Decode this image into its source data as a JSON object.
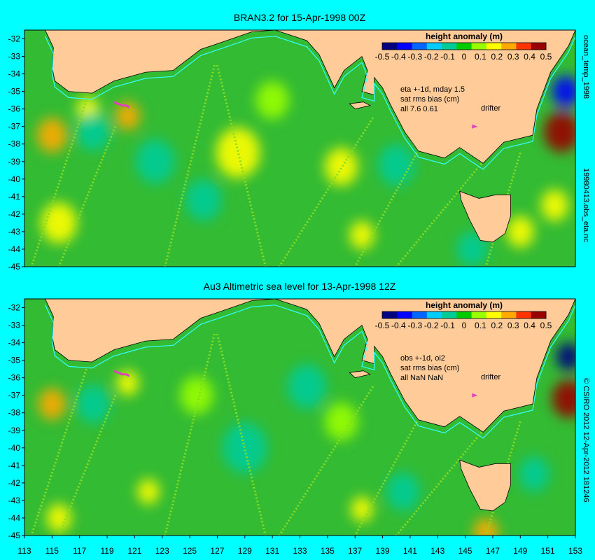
{
  "background_color": "#00ffff",
  "land_color": "#ffcc99",
  "ocean_base_color": "#33bb33",
  "coast_line_color": "#33ffff",
  "drifter_color": "#e040c0",
  "x_ticks": [
    "113",
    "115",
    "117",
    "119",
    "121",
    "123",
    "125",
    "127",
    "129",
    "131",
    "133",
    "135",
    "137",
    "139",
    "141",
    "143",
    "145",
    "147",
    "149",
    "151",
    "153"
  ],
  "y_ticks": [
    "-32",
    "-33",
    "-34",
    "-35",
    "-36",
    "-37",
    "-38",
    "-39",
    "-40",
    "-41",
    "-42",
    "-43",
    "-44",
    "-45"
  ],
  "colorbar": {
    "title": "height anomaly (m)",
    "labels": [
      "-0.5",
      "-0.4",
      "-0.3",
      "-0.2",
      "-0.1",
      "0",
      "0.1",
      "0.2",
      "0.3",
      "0.4",
      "0.5"
    ],
    "colors": [
      "#000080",
      "#0000ff",
      "#0066ff",
      "#00ccff",
      "#00cc99",
      "#00cc00",
      "#99ff00",
      "#ffff00",
      "#ffaa00",
      "#ff3300",
      "#990000"
    ]
  },
  "panels": [
    {
      "title": "BRAN3.2 for 15-Apr-1998 00Z",
      "info": [
        "eta +-1d, mday 1.5",
        "sat rms bias (cm)",
        "all 7.6 0.61"
      ],
      "drifter_label": "drifter",
      "side_label_top": "ocean_temp_1998",
      "side_label_bottom": "19980413.obs_eta.nc"
    },
    {
      "title": "Au3 Altimetric sea level  for 13-Apr-1998 12Z",
      "info": [
        "obs +-1d, oi2",
        "sat rms bias (cm)",
        "all NaN NaN"
      ],
      "drifter_label": "drifter",
      "side_label": "© CSIRO 2012  12-Apr-2012 181246"
    }
  ],
  "map_data": {
    "lon_range": [
      113,
      153
    ],
    "lat_range": [
      -45,
      -31.5
    ],
    "coast_mainland": [
      [
        114.5,
        -31.5
      ],
      [
        115.1,
        -32.5
      ],
      [
        115.0,
        -33.6
      ],
      [
        115.2,
        -34.4
      ],
      [
        116.2,
        -35.0
      ],
      [
        117.9,
        -35.1
      ],
      [
        119.5,
        -34.4
      ],
      [
        121.8,
        -33.9
      ],
      [
        123.8,
        -33.8
      ],
      [
        125.8,
        -32.6
      ],
      [
        127.3,
        -32.2
      ],
      [
        129.5,
        -31.6
      ],
      [
        131.2,
        -31.5
      ],
      [
        133.5,
        -32.1
      ],
      [
        134.4,
        -32.9
      ],
      [
        135.5,
        -34.8
      ],
      [
        136.2,
        -33.8
      ],
      [
        137.5,
        -33.0
      ],
      [
        137.9,
        -33.8
      ],
      [
        137.5,
        -35.0
      ],
      [
        138.4,
        -35.2
      ],
      [
        138.4,
        -34.2
      ],
      [
        139.0,
        -34.8
      ],
      [
        139.6,
        -35.8
      ],
      [
        140.6,
        -37.3
      ],
      [
        141.6,
        -38.4
      ],
      [
        143.5,
        -38.8
      ],
      [
        144.6,
        -38.2
      ],
      [
        146.3,
        -39.1
      ],
      [
        147.8,
        -37.9
      ],
      [
        149.9,
        -37.5
      ],
      [
        150.2,
        -36.0
      ],
      [
        151.2,
        -33.9
      ],
      [
        152.5,
        -32.4
      ],
      [
        153.0,
        -31.5
      ]
    ],
    "coast_tasmania": [
      [
        144.6,
        -40.7
      ],
      [
        146.0,
        -41.1
      ],
      [
        147.2,
        -40.9
      ],
      [
        148.3,
        -40.9
      ],
      [
        148.3,
        -42.1
      ],
      [
        147.9,
        -43.1
      ],
      [
        147.0,
        -43.6
      ],
      [
        146.1,
        -43.5
      ],
      [
        145.3,
        -42.3
      ],
      [
        144.7,
        -41.2
      ]
    ],
    "coast_kangaroo_island": [
      [
        136.6,
        -35.7
      ],
      [
        137.6,
        -35.6
      ],
      [
        138.1,
        -35.8
      ],
      [
        137.0,
        -36.0
      ]
    ],
    "drifter_tracks": [
      [
        [
          119.5,
          -35.6
        ],
        [
          119.8,
          -35.7
        ],
        [
          120.1,
          -35.8
        ],
        [
          120.4,
          -35.8
        ],
        [
          120.6,
          -35.9
        ]
      ]
    ],
    "drifter_legend_marker": [
      145.7,
      -37.0
    ],
    "anomaly_features_panel1": [
      {
        "lon": 115.0,
        "lat": -37.5,
        "value": 0.3,
        "radius": 1.1
      },
      {
        "lon": 120.5,
        "lat": -36.4,
        "value": 0.3,
        "radius": 0.9
      },
      {
        "lon": 117.6,
        "lat": -36.0,
        "value": 0.2,
        "radius": 0.8
      },
      {
        "lon": 152.0,
        "lat": -37.3,
        "value": 0.5,
        "radius": 1.3
      },
      {
        "lon": 152.3,
        "lat": -35.0,
        "value": -0.4,
        "radius": 1.0
      },
      {
        "lon": 118.0,
        "lat": -37.3,
        "value": -0.1,
        "radius": 1.2
      },
      {
        "lon": 122.5,
        "lat": -39.0,
        "value": -0.1,
        "radius": 1.4
      },
      {
        "lon": 128.5,
        "lat": -38.5,
        "value": 0.15,
        "radius": 1.6
      },
      {
        "lon": 126.0,
        "lat": -41.2,
        "value": -0.1,
        "radius": 1.3
      },
      {
        "lon": 136.0,
        "lat": -39.3,
        "value": 0.15,
        "radius": 1.2
      },
      {
        "lon": 140.0,
        "lat": -39.2,
        "value": -0.12,
        "radius": 1.3
      },
      {
        "lon": 149.0,
        "lat": -43.0,
        "value": 0.2,
        "radius": 1.0
      },
      {
        "lon": 137.5,
        "lat": -43.2,
        "value": 0.2,
        "radius": 0.9
      },
      {
        "lon": 115.5,
        "lat": -42.5,
        "value": 0.2,
        "radius": 1.3
      },
      {
        "lon": 131.0,
        "lat": -35.5,
        "value": 0.1,
        "radius": 1.2
      },
      {
        "lon": 145.5,
        "lat": -44.0,
        "value": -0.1,
        "radius": 1.1
      },
      {
        "lon": 151.5,
        "lat": -41.5,
        "value": 0.2,
        "radius": 1.0
      }
    ],
    "anomaly_features_panel2": [
      {
        "lon": 115.0,
        "lat": -37.5,
        "value": 0.25,
        "radius": 1.0
      },
      {
        "lon": 120.5,
        "lat": -36.3,
        "value": 0.2,
        "radius": 0.8
      },
      {
        "lon": 152.5,
        "lat": -37.2,
        "value": 0.5,
        "radius": 1.2
      },
      {
        "lon": 152.5,
        "lat": -34.8,
        "value": -0.45,
        "radius": 0.9
      },
      {
        "lon": 118.0,
        "lat": -37.5,
        "value": -0.12,
        "radius": 1.2
      },
      {
        "lon": 129.0,
        "lat": -40.0,
        "value": -0.1,
        "radius": 1.6
      },
      {
        "lon": 125.5,
        "lat": -37.0,
        "value": 0.12,
        "radius": 1.2
      },
      {
        "lon": 133.5,
        "lat": -36.5,
        "value": -0.08,
        "radius": 1.4
      },
      {
        "lon": 146.5,
        "lat": -44.8,
        "value": 0.3,
        "radius": 0.9
      },
      {
        "lon": 122.0,
        "lat": -42.5,
        "value": 0.2,
        "radius": 0.8
      },
      {
        "lon": 137.5,
        "lat": -43.5,
        "value": 0.2,
        "radius": 0.8
      },
      {
        "lon": 140.5,
        "lat": -42.5,
        "value": -0.12,
        "radius": 1.2
      },
      {
        "lon": 115.5,
        "lat": -44.0,
        "value": 0.2,
        "radius": 0.9
      },
      {
        "lon": 136.0,
        "lat": -38.5,
        "value": 0.1,
        "radius": 1.2
      },
      {
        "lon": 150.0,
        "lat": -41.5,
        "value": -0.1,
        "radius": 1.1
      }
    ],
    "satellite_tracks": [
      [
        [
          119.6,
          -37.0
        ],
        [
          115.5,
          -45.0
        ]
      ],
      [
        [
          126.8,
          -33.5
        ],
        [
          123.2,
          -45.0
        ]
      ],
      [
        [
          127.0,
          -33.5
        ],
        [
          130.5,
          -45.0
        ]
      ],
      [
        [
          138.3,
          -36.5
        ],
        [
          131.5,
          -45.0
        ]
      ],
      [
        [
          146.5,
          -38.8
        ],
        [
          140.0,
          -45.0
        ]
      ],
      [
        [
          141.5,
          -38.5
        ],
        [
          137.0,
          -45.0
        ]
      ],
      [
        [
          149.0,
          -38.5
        ],
        [
          146.5,
          -45.0
        ]
      ],
      [
        [
          117.5,
          -35.5
        ],
        [
          113.5,
          -45.0
        ]
      ]
    ]
  }
}
